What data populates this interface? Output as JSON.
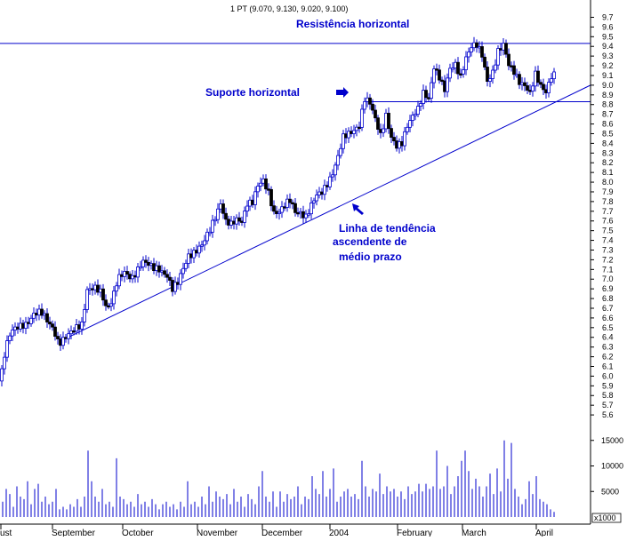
{
  "header": "1 PT (9.070, 9.130, 9.020, 9.100)",
  "chart_data": {
    "type": "candlestick",
    "series_name": "PT",
    "last_bar": {
      "open": 9.07,
      "high": 9.13,
      "low": 9.02,
      "close": 9.1
    },
    "price_ylim": [
      5.5,
      9.75
    ],
    "price_ticks": [
      "5.6",
      "5.7",
      "5.8",
      "5.9",
      "6.0",
      "6.1",
      "6.2",
      "6.3",
      "6.4",
      "6.5",
      "6.6",
      "6.7",
      "6.8",
      "6.9",
      "7.0",
      "7.1",
      "7.2",
      "7.3",
      "7.4",
      "7.5",
      "7.6",
      "7.7",
      "7.8",
      "7.9",
      "8.0",
      "8.1",
      "8.2",
      "8.3",
      "8.4",
      "8.5",
      "8.6",
      "8.7",
      "8.8",
      "8.9",
      "9.0",
      "9.1",
      "9.2",
      "9.3",
      "9.4",
      "9.5",
      "9.6",
      "9.7"
    ],
    "volume_ylim": [
      0,
      16000
    ],
    "volume_ticks": [
      "5000",
      "10000",
      "15000"
    ],
    "volume_unit_label": "x1000",
    "x_labels": [
      "ust",
      "September",
      "October",
      "November",
      "December",
      "2004",
      "February",
      "March",
      "April"
    ],
    "grid": false,
    "price_path": [
      [
        0,
        5.95
      ],
      [
        6,
        6.3
      ],
      [
        12,
        6.45
      ],
      [
        22,
        6.5
      ],
      [
        30,
        6.55
      ],
      [
        38,
        6.65
      ],
      [
        46,
        6.65
      ],
      [
        54,
        6.55
      ],
      [
        60,
        6.5
      ],
      [
        66,
        6.35
      ],
      [
        72,
        6.38
      ],
      [
        78,
        6.42
      ],
      [
        86,
        6.5
      ],
      [
        92,
        6.55
      ],
      [
        98,
        6.9
      ],
      [
        106,
        6.9
      ],
      [
        114,
        6.85
      ],
      [
        120,
        6.7
      ],
      [
        126,
        6.8
      ],
      [
        132,
        7.0
      ],
      [
        140,
        7.05
      ],
      [
        148,
        7.0
      ],
      [
        154,
        7.1
      ],
      [
        160,
        7.2
      ],
      [
        166,
        7.15
      ],
      [
        172,
        7.1
      ],
      [
        180,
        7.1
      ],
      [
        188,
        7.05
      ],
      [
        194,
        6.9
      ],
      [
        200,
        6.95
      ],
      [
        206,
        7.1
      ],
      [
        212,
        7.25
      ],
      [
        220,
        7.3
      ],
      [
        228,
        7.35
      ],
      [
        236,
        7.5
      ],
      [
        242,
        7.65
      ],
      [
        248,
        7.8
      ],
      [
        254,
        7.6
      ],
      [
        260,
        7.55
      ],
      [
        266,
        7.6
      ],
      [
        272,
        7.6
      ],
      [
        278,
        7.8
      ],
      [
        284,
        7.8
      ],
      [
        290,
        7.95
      ],
      [
        296,
        8.0
      ],
      [
        302,
        7.9
      ],
      [
        308,
        7.7
      ],
      [
        314,
        7.7
      ],
      [
        320,
        7.75
      ],
      [
        326,
        7.8
      ],
      [
        332,
        7.7
      ],
      [
        338,
        7.7
      ],
      [
        344,
        7.65
      ],
      [
        350,
        7.75
      ],
      [
        356,
        7.85
      ],
      [
        362,
        7.9
      ],
      [
        368,
        8.0
      ],
      [
        374,
        8.1
      ],
      [
        380,
        8.25
      ],
      [
        386,
        8.45
      ],
      [
        392,
        8.5
      ],
      [
        398,
        8.55
      ],
      [
        404,
        8.6
      ],
      [
        410,
        8.85
      ],
      [
        416,
        8.8
      ],
      [
        422,
        8.65
      ],
      [
        428,
        8.5
      ],
      [
        434,
        8.7
      ],
      [
        440,
        8.45
      ],
      [
        446,
        8.35
      ],
      [
        452,
        8.4
      ],
      [
        458,
        8.6
      ],
      [
        464,
        8.7
      ],
      [
        470,
        8.75
      ],
      [
        476,
        8.9
      ],
      [
        482,
        8.85
      ],
      [
        488,
        9.2
      ],
      [
        494,
        9.1
      ],
      [
        500,
        8.95
      ],
      [
        506,
        9.15
      ],
      [
        512,
        9.2
      ],
      [
        518,
        9.1
      ],
      [
        524,
        9.3
      ],
      [
        530,
        9.4
      ],
      [
        536,
        9.4
      ],
      [
        542,
        9.3
      ],
      [
        548,
        9.05
      ],
      [
        554,
        9.15
      ],
      [
        560,
        9.35
      ],
      [
        566,
        9.4
      ],
      [
        572,
        9.2
      ],
      [
        578,
        9.15
      ],
      [
        584,
        9.05
      ],
      [
        590,
        9.0
      ],
      [
        596,
        8.9
      ],
      [
        602,
        9.1
      ],
      [
        608,
        9.0
      ],
      [
        614,
        8.95
      ],
      [
        620,
        9.1
      ],
      [
        624,
        9.1
      ]
    ],
    "volume_bars": [
      [
        3,
        3000
      ],
      [
        7,
        5500
      ],
      [
        11,
        4500
      ],
      [
        15,
        2000
      ],
      [
        19,
        6000
      ],
      [
        23,
        4000
      ],
      [
        27,
        3500
      ],
      [
        31,
        7000
      ],
      [
        35,
        2500
      ],
      [
        39,
        5500
      ],
      [
        43,
        6500
      ],
      [
        47,
        3000
      ],
      [
        51,
        4000
      ],
      [
        55,
        2500
      ],
      [
        59,
        3000
      ],
      [
        63,
        5500
      ],
      [
        67,
        1500
      ],
      [
        71,
        2000
      ],
      [
        75,
        1500
      ],
      [
        79,
        2500
      ],
      [
        83,
        2000
      ],
      [
        87,
        3500
      ],
      [
        91,
        2000
      ],
      [
        95,
        4000
      ],
      [
        99,
        13000
      ],
      [
        103,
        7000
      ],
      [
        107,
        4000
      ],
      [
        111,
        3000
      ],
      [
        115,
        5500
      ],
      [
        119,
        2500
      ],
      [
        123,
        3000
      ],
      [
        127,
        2000
      ],
      [
        131,
        11500
      ],
      [
        135,
        4000
      ],
      [
        139,
        3500
      ],
      [
        143,
        2500
      ],
      [
        147,
        3000
      ],
      [
        151,
        2000
      ],
      [
        155,
        4500
      ],
      [
        159,
        2500
      ],
      [
        163,
        3000
      ],
      [
        167,
        2000
      ],
      [
        171,
        3500
      ],
      [
        175,
        2500
      ],
      [
        179,
        1500
      ],
      [
        183,
        2500
      ],
      [
        187,
        3000
      ],
      [
        191,
        2000
      ],
      [
        195,
        2500
      ],
      [
        199,
        1500
      ],
      [
        203,
        3000
      ],
      [
        207,
        2000
      ],
      [
        211,
        7000
      ],
      [
        215,
        2500
      ],
      [
        219,
        3000
      ],
      [
        223,
        2000
      ],
      [
        227,
        4000
      ],
      [
        231,
        2500
      ],
      [
        235,
        6000
      ],
      [
        239,
        3000
      ],
      [
        243,
        5000
      ],
      [
        247,
        4000
      ],
      [
        251,
        3500
      ],
      [
        255,
        4500
      ],
      [
        259,
        2500
      ],
      [
        263,
        5500
      ],
      [
        267,
        3000
      ],
      [
        271,
        4000
      ],
      [
        275,
        2000
      ],
      [
        279,
        4500
      ],
      [
        283,
        3500
      ],
      [
        287,
        2500
      ],
      [
        291,
        6000
      ],
      [
        295,
        9000
      ],
      [
        299,
        4000
      ],
      [
        303,
        3000
      ],
      [
        307,
        5000
      ],
      [
        311,
        2000
      ],
      [
        315,
        5000
      ],
      [
        319,
        3000
      ],
      [
        323,
        4500
      ],
      [
        327,
        3500
      ],
      [
        331,
        4000
      ],
      [
        335,
        6000
      ],
      [
        339,
        2500
      ],
      [
        343,
        4000
      ],
      [
        347,
        3500
      ],
      [
        351,
        8000
      ],
      [
        355,
        5500
      ],
      [
        359,
        4500
      ],
      [
        363,
        9000
      ],
      [
        367,
        4000
      ],
      [
        371,
        5500
      ],
      [
        375,
        9500
      ],
      [
        379,
        3000
      ],
      [
        383,
        4000
      ],
      [
        387,
        5000
      ],
      [
        391,
        5500
      ],
      [
        395,
        4000
      ],
      [
        399,
        4500
      ],
      [
        403,
        3500
      ],
      [
        407,
        11000
      ],
      [
        411,
        6000
      ],
      [
        415,
        4000
      ],
      [
        419,
        5500
      ],
      [
        423,
        5000
      ],
      [
        427,
        8500
      ],
      [
        431,
        4500
      ],
      [
        435,
        6000
      ],
      [
        439,
        5000
      ],
      [
        443,
        5500
      ],
      [
        447,
        4000
      ],
      [
        451,
        5000
      ],
      [
        455,
        3500
      ],
      [
        459,
        6000
      ],
      [
        463,
        4500
      ],
      [
        467,
        5000
      ],
      [
        471,
        6500
      ],
      [
        475,
        5000
      ],
      [
        479,
        6500
      ],
      [
        483,
        5500
      ],
      [
        487,
        6000
      ],
      [
        491,
        13000
      ],
      [
        495,
        5500
      ],
      [
        499,
        6000
      ],
      [
        503,
        10000
      ],
      [
        507,
        4500
      ],
      [
        511,
        6000
      ],
      [
        515,
        8000
      ],
      [
        519,
        11000
      ],
      [
        523,
        13000
      ],
      [
        527,
        9000
      ],
      [
        531,
        5500
      ],
      [
        535,
        7500
      ],
      [
        539,
        6000
      ],
      [
        543,
        4000
      ],
      [
        547,
        6000
      ],
      [
        551,
        8500
      ],
      [
        555,
        4500
      ],
      [
        559,
        9500
      ],
      [
        563,
        5000
      ],
      [
        567,
        15000
      ],
      [
        571,
        7500
      ],
      [
        575,
        14500
      ],
      [
        579,
        5500
      ],
      [
        583,
        4000
      ],
      [
        587,
        2500
      ],
      [
        591,
        3500
      ],
      [
        595,
        7000
      ],
      [
        599,
        4500
      ],
      [
        603,
        8000
      ],
      [
        607,
        3500
      ],
      [
        611,
        3000
      ],
      [
        615,
        2500
      ],
      [
        619,
        1500
      ],
      [
        623,
        1000
      ]
    ],
    "resistance_level": 9.43,
    "support_level": 8.83,
    "trendline": {
      "from": [
        72,
        6.38
      ],
      "to": [
        664,
        9.0
      ]
    }
  },
  "annotations": {
    "resistance": "Resistência horizontal",
    "support": "Suporte horizontal",
    "trend_l1": "Linha de tendência",
    "trend_l2": "ascendente de",
    "trend_l3": "médio prazo"
  },
  "colors": {
    "price": "#0000cc",
    "volume": "#0000cc",
    "annotation": "#0000cc",
    "axis": "#000000"
  }
}
